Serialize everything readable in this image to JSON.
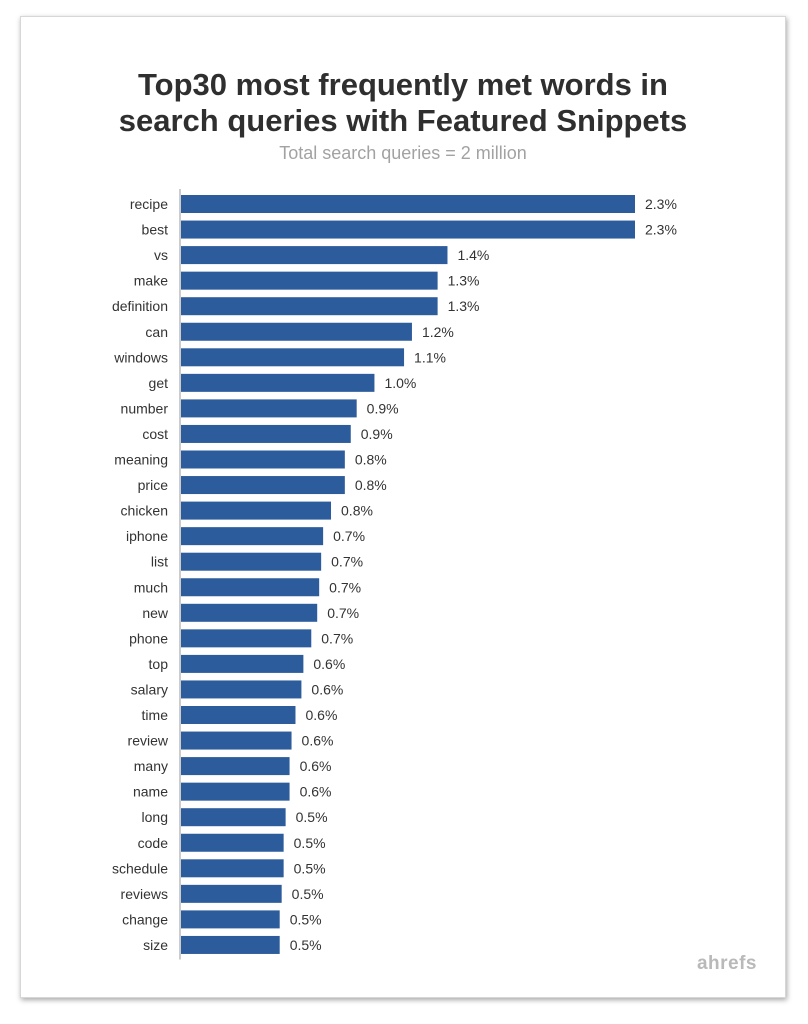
{
  "title_line1": "Top30 most frequently met words in",
  "title_line2": "search queries with Featured Snippets",
  "subtitle": "Total search queries = 2 million",
  "brand": "ahrefs",
  "colors": {
    "bar": "#2c5c9c",
    "axis": "#999999",
    "subtitle": "#a2a2a2",
    "brand": "#b9b9b9"
  },
  "chart_data": {
    "type": "bar",
    "orientation": "horizontal",
    "categories": [
      "recipe",
      "best",
      "vs",
      "make",
      "definition",
      "can",
      "windows",
      "get",
      "number",
      "cost",
      "meaning",
      "price",
      "chicken",
      "iphone",
      "list",
      "much",
      "new",
      "phone",
      "top",
      "salary",
      "time",
      "review",
      "many",
      "name",
      "long",
      "code",
      "schedule",
      "reviews",
      "change",
      "size"
    ],
    "values": [
      2.3,
      2.3,
      1.35,
      1.3,
      1.3,
      1.17,
      1.13,
      0.98,
      0.89,
      0.86,
      0.83,
      0.83,
      0.76,
      0.72,
      0.71,
      0.7,
      0.69,
      0.66,
      0.62,
      0.61,
      0.58,
      0.56,
      0.55,
      0.55,
      0.53,
      0.52,
      0.52,
      0.51,
      0.5,
      0.5
    ],
    "value_labels": [
      "2.3%",
      "2.3%",
      "1.4%",
      "1.3%",
      "1.3%",
      "1.2%",
      "1.1%",
      "1.0%",
      "0.9%",
      "0.9%",
      "0.8%",
      "0.8%",
      "0.8%",
      "0.7%",
      "0.7%",
      "0.7%",
      "0.7%",
      "0.7%",
      "0.6%",
      "0.6%",
      "0.6%",
      "0.6%",
      "0.6%",
      "0.6%",
      "0.5%",
      "0.5%",
      "0.5%",
      "0.5%",
      "0.5%",
      "0.5%"
    ],
    "title": "Top30 most frequently met words in search queries with Featured Snippets",
    "subtitle": "Total search queries = 2 million",
    "xlabel": "",
    "ylabel": "",
    "xlim": [
      0,
      2.3
    ],
    "grid": false,
    "legend": "none"
  }
}
